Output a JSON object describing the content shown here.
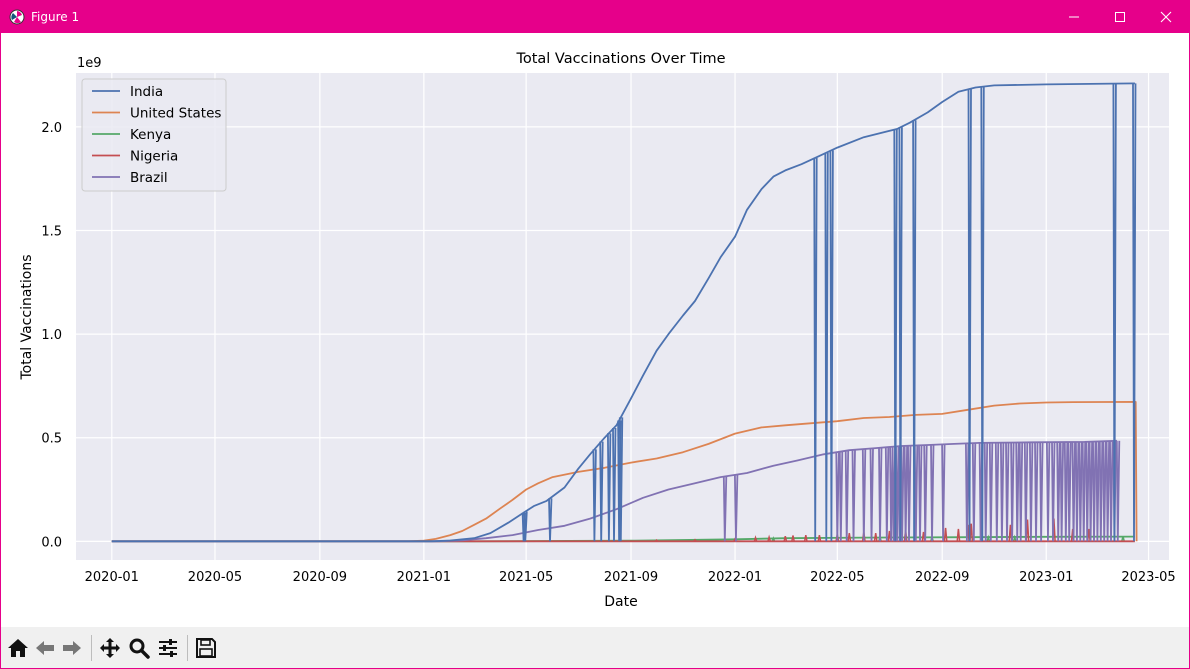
{
  "window": {
    "title": "Figure 1",
    "controls": [
      "minimize",
      "maximize",
      "close"
    ],
    "titlebar_color": "#e6008a"
  },
  "toolbar": {
    "buttons": [
      "home-icon",
      "back-icon",
      "forward-icon",
      "pan-icon",
      "zoom-icon",
      "configure-subplots-icon",
      "save-icon"
    ]
  },
  "chart_data": {
    "type": "line",
    "title": "Total Vaccinations Over Time",
    "xlabel": "Date",
    "ylabel": "Total Vaccinations",
    "y_offset_text": "1e9",
    "y_scale_factor": 1000000000,
    "ylim": [
      -0.09,
      2.26
    ],
    "xlim": [
      "2019-11-20",
      "2023-05-25"
    ],
    "x_ticks": [
      "2020-01",
      "2020-05",
      "2020-09",
      "2021-01",
      "2021-05",
      "2021-09",
      "2022-01",
      "2022-05",
      "2022-09",
      "2023-01",
      "2023-05"
    ],
    "y_ticks": [
      0.0,
      0.5,
      1.0,
      1.5,
      2.0
    ],
    "y_tick_labels": [
      "0.0",
      "0.5",
      "1.0",
      "1.5",
      "2.0"
    ],
    "grid": true,
    "legend_position": "top-left",
    "background": "#eaeaf2",
    "series": [
      {
        "name": "India",
        "color": "#4c72b0",
        "points": [
          [
            "2020-01-01",
            0
          ],
          [
            "2021-01-10",
            0
          ],
          [
            "2021-02-01",
            0.004
          ],
          [
            "2021-03-01",
            0.015
          ],
          [
            "2021-03-20",
            0.04
          ],
          [
            "2021-04-10",
            0.09
          ],
          [
            "2021-04-25",
            0.13
          ],
          [
            "2021-05-10",
            0.17
          ],
          [
            "2021-05-25",
            0.195
          ],
          [
            "2021-06-15",
            0.26
          ],
          [
            "2021-07-01",
            0.35
          ],
          [
            "2021-07-15",
            0.42
          ],
          [
            "2021-08-01",
            0.5
          ],
          [
            "2021-08-15",
            0.56
          ],
          [
            "2021-09-01",
            0.69
          ],
          [
            "2021-09-15",
            0.8
          ],
          [
            "2021-10-01",
            0.92
          ],
          [
            "2021-10-15",
            1.0
          ],
          [
            "2021-11-01",
            1.09
          ],
          [
            "2021-11-15",
            1.16
          ],
          [
            "2021-12-01",
            1.27
          ],
          [
            "2021-12-15",
            1.37
          ],
          [
            "2022-01-01",
            1.47
          ],
          [
            "2022-01-15",
            1.6
          ],
          [
            "2022-02-01",
            1.7
          ],
          [
            "2022-02-15",
            1.76
          ],
          [
            "2022-03-01",
            1.79
          ],
          [
            "2022-03-20",
            1.82
          ],
          [
            "2022-04-10",
            1.86
          ],
          [
            "2022-05-01",
            1.9
          ],
          [
            "2022-06-01",
            1.95
          ],
          [
            "2022-07-10",
            1.99
          ],
          [
            "2022-07-25",
            2.02
          ],
          [
            "2022-08-15",
            2.07
          ],
          [
            "2022-09-01",
            2.12
          ],
          [
            "2022-09-20",
            2.17
          ],
          [
            "2022-10-10",
            2.19
          ],
          [
            "2022-11-01",
            2.2
          ],
          [
            "2023-01-01",
            2.205
          ],
          [
            "2023-04-15",
            2.21
          ]
        ],
        "drops_to_zero": [
          "2021-04-28",
          "2021-04-30",
          "2021-05-29",
          "2021-07-20",
          "2021-07-28",
          "2021-08-06",
          "2021-08-12",
          "2021-08-18",
          "2021-08-20",
          "2022-04-05",
          "2022-04-18",
          "2022-04-24",
          "2022-07-08",
          "2022-07-14",
          "2022-07-30",
          "2022-10-03",
          "2022-10-18",
          "2023-03-22",
          "2023-04-14"
        ]
      },
      {
        "name": "United States",
        "color": "#dd8452",
        "points": [
          [
            "2020-01-01",
            0
          ],
          [
            "2020-12-14",
            0
          ],
          [
            "2021-01-01",
            0.003
          ],
          [
            "2021-01-15",
            0.012
          ],
          [
            "2021-02-01",
            0.03
          ],
          [
            "2021-02-15",
            0.05
          ],
          [
            "2021-03-01",
            0.08
          ],
          [
            "2021-03-15",
            0.11
          ],
          [
            "2021-04-01",
            0.16
          ],
          [
            "2021-04-15",
            0.2
          ],
          [
            "2021-05-01",
            0.25
          ],
          [
            "2021-05-15",
            0.28
          ],
          [
            "2021-06-01",
            0.31
          ],
          [
            "2021-07-01",
            0.335
          ],
          [
            "2021-08-01",
            0.355
          ],
          [
            "2021-09-01",
            0.38
          ],
          [
            "2021-10-01",
            0.4
          ],
          [
            "2021-11-01",
            0.43
          ],
          [
            "2021-12-01",
            0.47
          ],
          [
            "2022-01-01",
            0.52
          ],
          [
            "2022-02-01",
            0.55
          ],
          [
            "2022-03-01",
            0.56
          ],
          [
            "2022-04-01",
            0.57
          ],
          [
            "2022-05-01",
            0.58
          ],
          [
            "2022-06-01",
            0.595
          ],
          [
            "2022-07-01",
            0.6
          ],
          [
            "2022-08-01",
            0.61
          ],
          [
            "2022-09-01",
            0.615
          ],
          [
            "2022-10-01",
            0.635
          ],
          [
            "2022-11-01",
            0.655
          ],
          [
            "2022-12-01",
            0.665
          ],
          [
            "2023-01-01",
            0.67
          ],
          [
            "2023-02-01",
            0.672
          ],
          [
            "2023-04-16",
            0.673
          ],
          [
            "2023-04-17",
            0
          ]
        ]
      },
      {
        "name": "Kenya",
        "color": "#55a868",
        "points": [
          [
            "2020-01-01",
            0
          ],
          [
            "2021-03-01",
            0
          ],
          [
            "2021-09-01",
            0.003
          ],
          [
            "2022-01-01",
            0.01
          ],
          [
            "2022-03-01",
            0.015
          ],
          [
            "2022-06-01",
            0.018
          ],
          [
            "2022-10-01",
            0.02
          ],
          [
            "2023-01-01",
            0.022
          ],
          [
            "2023-04-15",
            0.023
          ]
        ],
        "spikes": [
          [
            "2022-02-15",
            0.015
          ],
          [
            "2022-06-20",
            0.02
          ],
          [
            "2022-08-20",
            0.022
          ],
          [
            "2022-10-25",
            0.02
          ],
          [
            "2022-11-25",
            0.02
          ],
          [
            "2023-04-01",
            0.025
          ]
        ]
      },
      {
        "name": "Nigeria",
        "color": "#c44e52",
        "points": [
          [
            "2020-01-01",
            0
          ],
          [
            "2023-04-15",
            0
          ]
        ],
        "spikes": [
          [
            "2021-10-01",
            0.006
          ],
          [
            "2021-11-15",
            0.008
          ],
          [
            "2022-01-01",
            0.012
          ],
          [
            "2022-01-25",
            0.018
          ],
          [
            "2022-02-10",
            0.02
          ],
          [
            "2022-03-01",
            0.025
          ],
          [
            "2022-03-10",
            0.028
          ],
          [
            "2022-03-25",
            0.03
          ],
          [
            "2022-04-10",
            0.03
          ],
          [
            "2022-05-01",
            0.035
          ],
          [
            "2022-05-15",
            0.04
          ],
          [
            "2022-06-01",
            0.045
          ],
          [
            "2022-06-15",
            0.04
          ],
          [
            "2022-07-01",
            0.05
          ],
          [
            "2022-07-20",
            0.055
          ],
          [
            "2022-08-10",
            0.045
          ],
          [
            "2022-09-05",
            0.065
          ],
          [
            "2022-09-20",
            0.06
          ],
          [
            "2022-10-01",
            0.08
          ],
          [
            "2022-10-05",
            0.085
          ],
          [
            "2022-11-20",
            0.08
          ],
          [
            "2022-12-10",
            0.105
          ],
          [
            "2023-01-10",
            0.11
          ],
          [
            "2023-02-01",
            0.06
          ],
          [
            "2023-02-20",
            0.06
          ]
        ]
      },
      {
        "name": "Brazil",
        "color": "#8172b3",
        "points": [
          [
            "2020-01-01",
            0
          ],
          [
            "2021-01-17",
            0
          ],
          [
            "2021-02-15",
            0.005
          ],
          [
            "2021-03-15",
            0.015
          ],
          [
            "2021-04-15",
            0.03
          ],
          [
            "2021-05-15",
            0.055
          ],
          [
            "2021-06-15",
            0.075
          ],
          [
            "2021-07-15",
            0.11
          ],
          [
            "2021-08-15",
            0.155
          ],
          [
            "2021-09-15",
            0.21
          ],
          [
            "2021-10-15",
            0.25
          ],
          [
            "2021-11-15",
            0.28
          ],
          [
            "2021-12-15",
            0.31
          ],
          [
            "2022-01-15",
            0.33
          ],
          [
            "2022-02-15",
            0.365
          ],
          [
            "2022-03-15",
            0.39
          ],
          [
            "2022-04-15",
            0.42
          ],
          [
            "2022-05-15",
            0.44
          ],
          [
            "2022-06-15",
            0.45
          ],
          [
            "2022-07-15",
            0.46
          ],
          [
            "2022-08-15",
            0.465
          ],
          [
            "2022-09-15",
            0.47
          ],
          [
            "2022-10-15",
            0.475
          ],
          [
            "2022-12-15",
            0.478
          ],
          [
            "2023-02-15",
            0.48
          ],
          [
            "2023-03-25",
            0.485
          ]
        ],
        "drops_to_zero": [
          "2021-12-20",
          "2022-01-02",
          "2022-05-01",
          "2022-05-05",
          "2022-05-12",
          "2022-05-20",
          "2022-06-01",
          "2022-06-10",
          "2022-06-20",
          "2022-06-28",
          "2022-07-03",
          "2022-07-06",
          "2022-07-10",
          "2022-07-13",
          "2022-07-16",
          "2022-07-20",
          "2022-07-24",
          "2022-08-01",
          "2022-08-06",
          "2022-08-12",
          "2022-08-20",
          "2022-09-02",
          "2022-09-30",
          "2022-10-08",
          "2022-10-16",
          "2022-10-22",
          "2022-10-28",
          "2022-11-04",
          "2022-11-10",
          "2022-11-16",
          "2022-11-22",
          "2022-11-28",
          "2022-12-02",
          "2022-12-08",
          "2022-12-14",
          "2022-12-20",
          "2022-12-26",
          "2023-01-03",
          "2023-01-09",
          "2023-01-15",
          "2023-01-19",
          "2023-01-24",
          "2023-01-28",
          "2023-02-02",
          "2023-02-06",
          "2023-02-10",
          "2023-02-14",
          "2023-02-18",
          "2023-02-22",
          "2023-02-26",
          "2023-03-02",
          "2023-03-06",
          "2023-03-10",
          "2023-03-14",
          "2023-03-18",
          "2023-03-22",
          "2023-03-26"
        ]
      }
    ]
  }
}
